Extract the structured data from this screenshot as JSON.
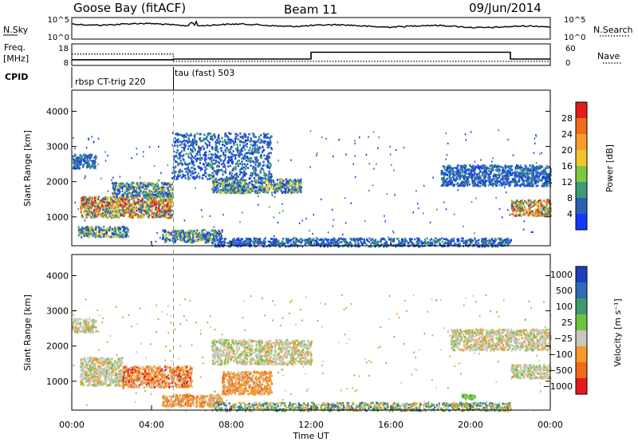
{
  "header": {
    "station": "Goose Bay (fitACF)",
    "beam": "Beam 11",
    "date": "09/Jun/2014"
  },
  "noise_panel": {
    "left_label": "N.Sky",
    "right_label": "N.Search",
    "ticks_left": [
      "10^5",
      "10^0"
    ],
    "ticks_right": [
      "10^5",
      "10^0"
    ]
  },
  "freq_panel": {
    "left_label_1": "Freq.",
    "left_label_2": "[MHz]",
    "right_label": "Nave",
    "ticks_left": [
      "18",
      "8"
    ],
    "ticks_right": [
      "60",
      "0"
    ],
    "freq_mhz": [
      [
        0,
        10.2
      ],
      [
        5.1,
        10.2
      ],
      [
        5.1,
        10.6
      ],
      [
        12.0,
        10.6
      ],
      [
        12.0,
        14.3
      ],
      [
        22.0,
        14.3
      ],
      [
        22.0,
        10.6
      ],
      [
        24,
        10.6
      ]
    ],
    "nave": [
      [
        0,
        32
      ],
      [
        5.1,
        32
      ],
      [
        5.1,
        8
      ],
      [
        24,
        8
      ]
    ]
  },
  "cpid": {
    "label": "CPID",
    "modes": [
      {
        "name": "rbsp CT-trig 220",
        "start": 0
      },
      {
        "name": "tau (fast) 503",
        "start": 5.1
      }
    ]
  },
  "chart_data": [
    {
      "type": "heatmap",
      "name": "Power",
      "ylabel": "Slant Range [km]",
      "yticks": [
        "1000",
        "2000",
        "3000",
        "4000"
      ],
      "ylim": [
        180,
        4600
      ],
      "xlim": [
        0,
        24
      ],
      "colorbar": {
        "label": "Power [dB]",
        "ticks": [
          "28",
          "24",
          "20",
          "16",
          "12",
          "8",
          "4"
        ],
        "colors": [
          "#e41a1c",
          "#f06a1a",
          "#fa9a2a",
          "#f2c52c",
          "#7ac943",
          "#3d9c73",
          "#2c5fb6",
          "#1438ff"
        ]
      },
      "regions": [
        {
          "t0": 0.4,
          "t1": 5.0,
          "r0": 1000,
          "r1": 1600,
          "level": "high"
        },
        {
          "t0": 0.3,
          "t1": 2.8,
          "r0": 450,
          "r1": 750,
          "level": "mid"
        },
        {
          "t0": 2.0,
          "t1": 5.0,
          "r0": 1600,
          "r1": 2000,
          "level": "mid"
        },
        {
          "t0": 7.0,
          "t1": 11.5,
          "r0": 1700,
          "r1": 2100,
          "level": "mid"
        },
        {
          "t0": 4.5,
          "t1": 7.5,
          "r0": 300,
          "r1": 650,
          "level": "mid"
        },
        {
          "t0": 22.0,
          "t1": 24.0,
          "r0": 1050,
          "r1": 1500,
          "level": "high"
        },
        {
          "t0": 18.5,
          "t1": 24.0,
          "r0": 1900,
          "r1": 2500,
          "level": "low"
        },
        {
          "t0": 0.0,
          "t1": 1.2,
          "r0": 2400,
          "r1": 2800,
          "level": "low"
        },
        {
          "t0": 5.0,
          "t1": 10.0,
          "r0": 2100,
          "r1": 3400,
          "level": "low"
        },
        {
          "t0": 7.0,
          "t1": 22.0,
          "r0": 180,
          "r1": 420,
          "level": "low"
        }
      ]
    },
    {
      "type": "heatmap",
      "name": "Velocity",
      "ylabel": "Slant Range [km]",
      "yticks": [
        "1000",
        "2000",
        "3000",
        "4000"
      ],
      "ylim": [
        180,
        4600
      ],
      "xlim": [
        0,
        24
      ],
      "xlabel": "Time UT",
      "xticks": [
        "00:00",
        "04:00",
        "08:00",
        "12:00",
        "16:00",
        "20:00",
        "00:00"
      ],
      "colorbar": {
        "label": "Velocity [m s⁻¹]",
        "ticks": [
          "1000",
          "500",
          "100",
          "25",
          "−25",
          "−100",
          "−500",
          "−1000"
        ],
        "colors": [
          "#1f3fbf",
          "#2d6db5",
          "#3c9a6e",
          "#6ec43c",
          "#c8c8be",
          "#f59a2a",
          "#f06a1a",
          "#e41a1c"
        ]
      },
      "regions": [
        {
          "t0": 2.5,
          "t1": 6.0,
          "r0": 850,
          "r1": 1450,
          "level": "neg-fast"
        },
        {
          "t0": 0.4,
          "t1": 2.5,
          "r0": 900,
          "r1": 1700,
          "level": "grey"
        },
        {
          "t0": 7.0,
          "t1": 12.0,
          "r0": 1500,
          "r1": 2200,
          "level": "grey"
        },
        {
          "t0": 4.5,
          "t1": 7.5,
          "r0": 300,
          "r1": 650,
          "level": "neg"
        },
        {
          "t0": 7.5,
          "t1": 10.0,
          "r0": 650,
          "r1": 1300,
          "level": "neg"
        },
        {
          "t0": 22.0,
          "t1": 24.0,
          "r0": 1100,
          "r1": 1500,
          "level": "grey"
        },
        {
          "t0": 19.0,
          "t1": 24.0,
          "r0": 1900,
          "r1": 2500,
          "level": "grey"
        },
        {
          "t0": 0.0,
          "t1": 1.2,
          "r0": 2400,
          "r1": 2800,
          "level": "grey"
        },
        {
          "t0": 19.5,
          "t1": 20.2,
          "r0": 500,
          "r1": 650,
          "level": "pos"
        },
        {
          "t0": 7.0,
          "t1": 22.0,
          "r0": 180,
          "r1": 420,
          "level": "mixed"
        }
      ]
    }
  ]
}
